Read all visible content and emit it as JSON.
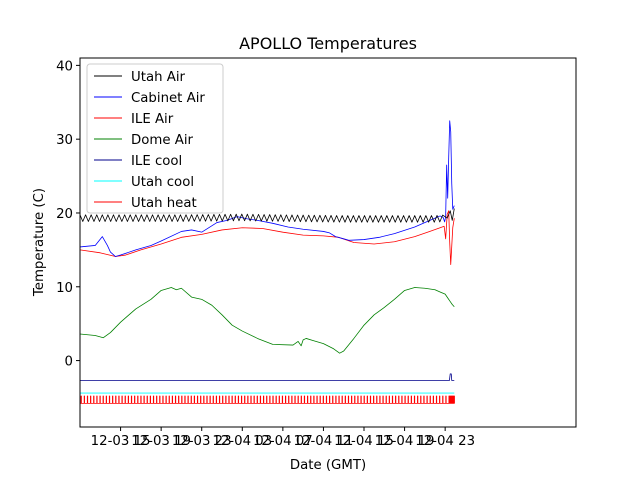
{
  "chart_data": {
    "type": "line",
    "title": "APOLLO Temperatures",
    "xlabel": "Date (GMT)",
    "ylabel": "Temperature (C)",
    "x_unit": "hours since 12-03 11:00 GMT",
    "xlim": [
      0,
      48.9
    ],
    "ylim": [
      -9,
      41
    ],
    "x_ticks": [
      {
        "x": 4,
        "label": "12-03 15"
      },
      {
        "x": 8,
        "label": "12-03 19"
      },
      {
        "x": 12,
        "label": "12-03 23"
      },
      {
        "x": 16,
        "label": "12-04 03"
      },
      {
        "x": 20,
        "label": "12-04 07"
      },
      {
        "x": 24,
        "label": "12-04 11"
      },
      {
        "x": 28,
        "label": "12-04 15"
      },
      {
        "x": 32,
        "label": "12-04 19"
      },
      {
        "x": 36,
        "label": "12-04 23"
      }
    ],
    "y_ticks": [
      {
        "y": 0,
        "label": "0"
      },
      {
        "y": 10,
        "label": "10"
      },
      {
        "y": 20,
        "label": "20"
      },
      {
        "y": 30,
        "label": "30"
      },
      {
        "y": 40,
        "label": "40"
      }
    ],
    "legend_position": "top-left",
    "series": [
      {
        "name": "Utah Air",
        "color": "#000000",
        "style": "oscillating",
        "oscillation_period": 0.55,
        "oscillation_amplitude": 0.45,
        "x": [
          0,
          10,
          16,
          20,
          26,
          35,
          36.2,
          36.5,
          36.7,
          36.9
        ],
        "y": [
          19.3,
          19.3,
          19.4,
          19.3,
          19.2,
          19.2,
          19.3,
          20.3,
          19.0,
          20.6
        ]
      },
      {
        "name": "Cabinet Air",
        "color": "#0000ff",
        "style": "line",
        "x": [
          0,
          1.5,
          2.2,
          2.7,
          3.0,
          3.5,
          4.0,
          5.5,
          7.0,
          8.0,
          10.0,
          11.0,
          12.0,
          13.5,
          14.5,
          15.5,
          16.5,
          17.5,
          19.0,
          20.5,
          22.0,
          24.0,
          24.6,
          25.2,
          26.0,
          26.5,
          28.0,
          29.5,
          31.0,
          33.0,
          35.0,
          35.5,
          35.8,
          35.95,
          36.05,
          36.15,
          36.25,
          36.35,
          36.45,
          36.55,
          36.65,
          36.75,
          36.9
        ],
        "y": [
          15.4,
          15.6,
          16.8,
          15.6,
          14.7,
          14.1,
          14.3,
          15.0,
          15.6,
          16.2,
          17.5,
          17.7,
          17.4,
          18.7,
          19.0,
          19.5,
          19.2,
          19.0,
          18.6,
          18.1,
          17.8,
          17.5,
          17.3,
          16.8,
          16.5,
          16.3,
          16.4,
          16.7,
          17.2,
          18.1,
          19.3,
          19.6,
          19.4,
          18.8,
          19.5,
          26.5,
          22.0,
          27.5,
          32.5,
          31.0,
          24.0,
          20.5,
          21.0
        ]
      },
      {
        "name": "ILE Air",
        "color": "#ff0000",
        "style": "line",
        "x": [
          0,
          2.0,
          3.5,
          4.5,
          6.0,
          8.0,
          10.0,
          12.0,
          14.0,
          16.0,
          18.0,
          20.0,
          22.0,
          24.0,
          25.5,
          27.0,
          29.0,
          31.0,
          33.0,
          34.5,
          35.5,
          35.9,
          36.05,
          36.2,
          36.35,
          36.45,
          36.55,
          36.65,
          36.75,
          36.9
        ],
        "y": [
          15.0,
          14.6,
          14.1,
          14.3,
          15.0,
          15.8,
          16.7,
          17.1,
          17.7,
          18.0,
          17.9,
          17.4,
          17.0,
          16.9,
          16.7,
          16.0,
          15.8,
          16.1,
          16.8,
          17.5,
          18.0,
          18.2,
          16.5,
          19.8,
          20.3,
          16.0,
          13.0,
          15.5,
          18.0,
          19.3
        ]
      },
      {
        "name": "Dome Air",
        "color": "#008000",
        "style": "line",
        "x": [
          0,
          1.5,
          2.3,
          3.0,
          4.0,
          5.5,
          7.0,
          8.0,
          9.0,
          9.5,
          10.0,
          11.0,
          12.0,
          13.0,
          14.0,
          15.0,
          16.0,
          17.5,
          19.0,
          21.0,
          21.5,
          21.8,
          22.0,
          22.3,
          23.0,
          24.0,
          25.0,
          25.6,
          26.0,
          27.0,
          28.0,
          29.0,
          30.0,
          31.0,
          32.0,
          33.0,
          34.0,
          35.0,
          35.5,
          36.0,
          36.3,
          36.5,
          36.7,
          36.9
        ],
        "y": [
          3.6,
          3.4,
          3.1,
          3.8,
          5.2,
          7.0,
          8.3,
          9.5,
          9.9,
          9.6,
          9.8,
          8.6,
          8.3,
          7.5,
          6.2,
          4.8,
          4.0,
          3.0,
          2.2,
          2.1,
          2.6,
          2.0,
          2.8,
          3.0,
          2.7,
          2.3,
          1.6,
          1.0,
          1.3,
          3.0,
          4.8,
          6.2,
          7.2,
          8.3,
          9.5,
          9.9,
          9.8,
          9.6,
          9.3,
          9.0,
          8.4,
          8.0,
          7.6,
          7.3
        ]
      },
      {
        "name": "ILE cool",
        "color": "#00008b",
        "style": "line",
        "x": [
          0,
          36.3,
          36.42,
          36.5,
          36.6,
          36.65,
          36.7,
          36.9
        ],
        "y": [
          -2.7,
          -2.7,
          -2.7,
          -1.8,
          -1.8,
          -2.7,
          -2.7,
          -2.7
        ]
      },
      {
        "name": "Utah cool",
        "color": "#00ffff",
        "style": "line",
        "x": [
          0,
          36.9
        ],
        "y": [
          -4.4,
          -4.4
        ]
      },
      {
        "name": "Utah heat",
        "color": "#ff0000",
        "style": "pulses",
        "pulse_period": 0.31,
        "pulse_high": -4.8,
        "x": [
          0,
          36.9
        ],
        "y": [
          -5.8,
          -5.8
        ]
      }
    ]
  }
}
